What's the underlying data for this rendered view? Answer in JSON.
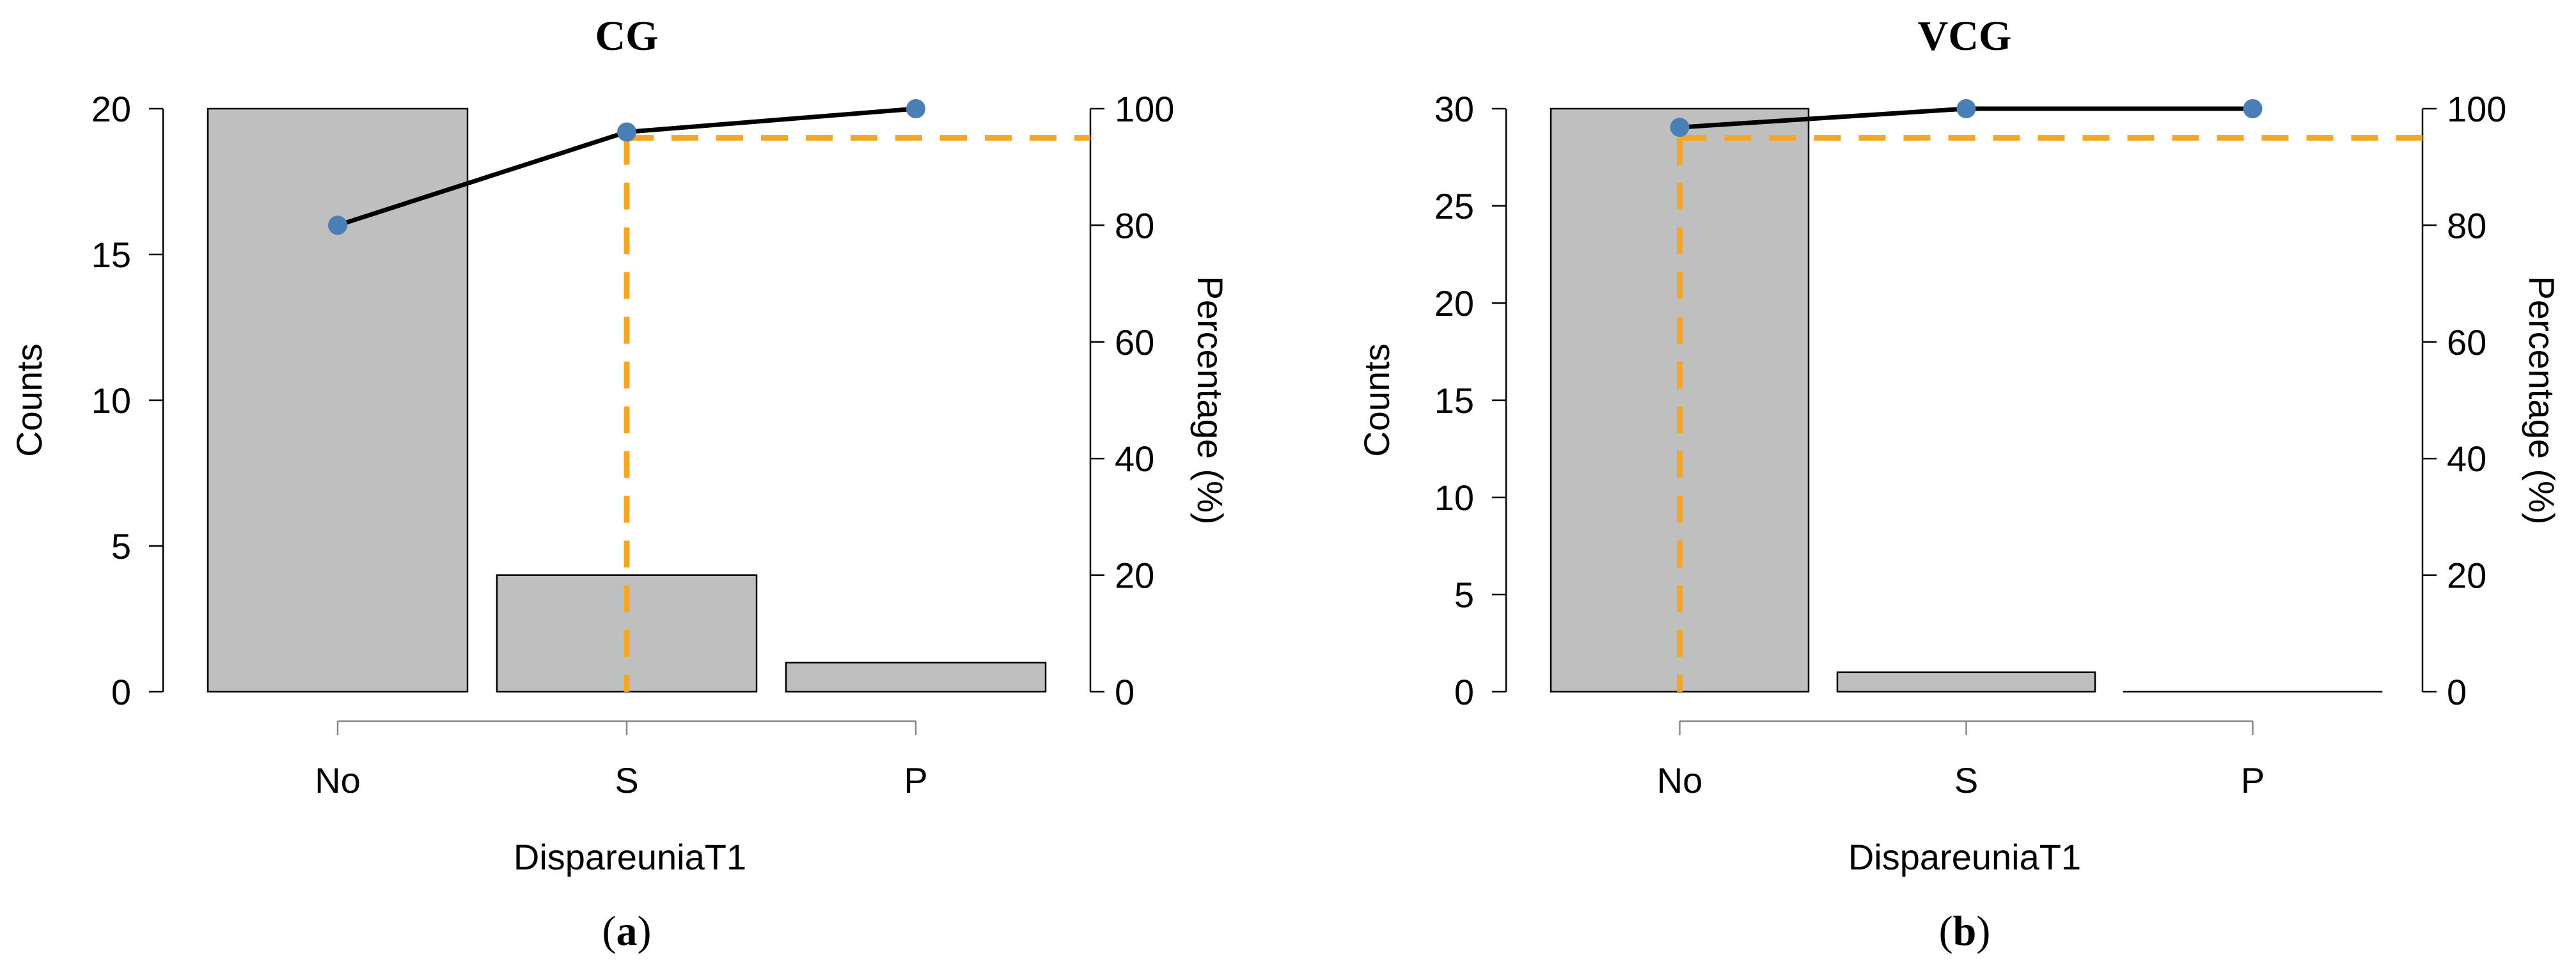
{
  "chart_data": [
    {
      "type": "bar",
      "panel_label": "a",
      "title": "CG",
      "xlabel": "DispareuniaT1",
      "ylabel": "Counts",
      "y2label": "Percentage (%)",
      "categories": [
        "No",
        "S",
        "P"
      ],
      "values": [
        20,
        4,
        1
      ],
      "cumulative_percentage": [
        80,
        96,
        100
      ],
      "ylim": [
        0,
        20
      ],
      "yticks": [
        0,
        5,
        10,
        15,
        20
      ],
      "y2lim": [
        0,
        100
      ],
      "y2ticks": [
        0,
        20,
        40,
        60,
        80,
        100
      ],
      "reference_percentage": 95,
      "reference_category_index": 1,
      "colors": {
        "bar": "#bfbfbf",
        "line": "#000000",
        "point": "#4a7fb5",
        "reference": "#f5a623"
      }
    },
    {
      "type": "bar",
      "panel_label": "b",
      "title": "VCG",
      "xlabel": "DispareuniaT1",
      "ylabel": "Counts",
      "y2label": "Percentage (%)",
      "categories": [
        "No",
        "S",
        "P"
      ],
      "values": [
        30,
        1,
        0
      ],
      "cumulative_percentage": [
        96.8,
        100,
        100
      ],
      "ylim": [
        0,
        30
      ],
      "yticks": [
        0,
        5,
        10,
        15,
        20,
        25,
        30
      ],
      "y2lim": [
        0,
        100
      ],
      "y2ticks": [
        0,
        20,
        40,
        60,
        80,
        100
      ],
      "reference_percentage": 95,
      "reference_category_index": 0,
      "colors": {
        "bar": "#bfbfbf",
        "line": "#000000",
        "point": "#4a7fb5",
        "reference": "#f5a623"
      }
    }
  ]
}
